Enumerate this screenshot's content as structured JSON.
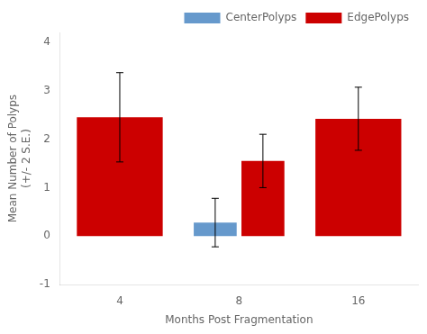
{
  "chart_data": {
    "type": "bar",
    "categories": [
      "4",
      "8",
      "16"
    ],
    "series": [
      {
        "name": "CenterPolyps",
        "color": "#6699cc",
        "values": [
          null,
          0.28,
          null
        ],
        "errors": [
          null,
          0.5,
          null
        ]
      },
      {
        "name": "EdgePolyps",
        "color": "#cc0000",
        "values": [
          2.45,
          1.55,
          2.42
        ],
        "errors": [
          0.92,
          0.55,
          0.65
        ]
      }
    ],
    "xlabel": "Months Post Fragmentation",
    "ylabel": "Mean Number of Polyps\n(+/- 2 S.E.)",
    "ylim": [
      -1,
      4.2
    ],
    "yticks": [
      -1,
      0,
      1,
      2,
      3,
      4
    ],
    "grid": false,
    "legend": "upper right"
  }
}
